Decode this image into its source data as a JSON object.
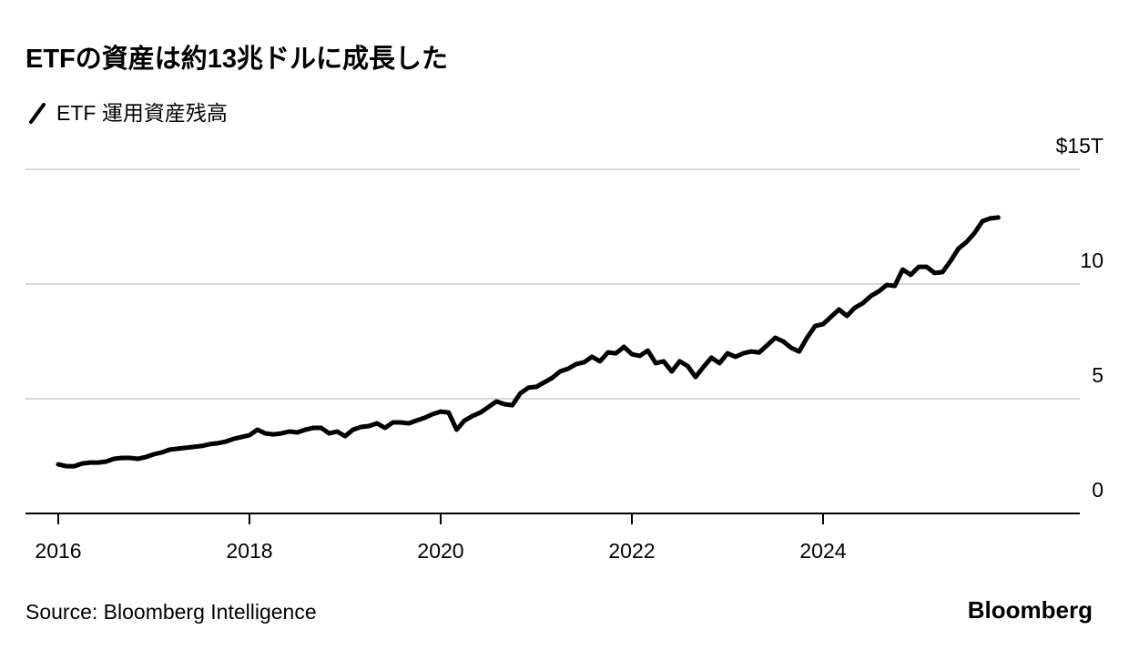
{
  "chart_data": {
    "type": "line",
    "title": "ETFの資産は約13兆ドルに成長した",
    "source": "Source: Bloomberg Intelligence",
    "brand": "Bloomberg",
    "x": [
      2016,
      2016.083,
      2016.167,
      2016.25,
      2016.333,
      2016.417,
      2016.5,
      2016.583,
      2016.667,
      2016.75,
      2016.833,
      2016.917,
      2017,
      2017.083,
      2017.167,
      2017.25,
      2017.333,
      2017.417,
      2017.5,
      2017.583,
      2017.667,
      2017.75,
      2017.833,
      2017.917,
      2018,
      2018.083,
      2018.167,
      2018.25,
      2018.333,
      2018.417,
      2018.5,
      2018.583,
      2018.667,
      2018.75,
      2018.833,
      2018.917,
      2019,
      2019.083,
      2019.167,
      2019.25,
      2019.333,
      2019.417,
      2019.5,
      2019.583,
      2019.667,
      2019.75,
      2019.833,
      2019.917,
      2020,
      2020.083,
      2020.167,
      2020.25,
      2020.333,
      2020.417,
      2020.5,
      2020.583,
      2020.667,
      2020.75,
      2020.833,
      2020.917,
      2021,
      2021.083,
      2021.167,
      2021.25,
      2021.333,
      2021.417,
      2021.5,
      2021.583,
      2021.667,
      2021.75,
      2021.833,
      2021.917,
      2022,
      2022.083,
      2022.167,
      2022.25,
      2022.333,
      2022.417,
      2022.5,
      2022.583,
      2022.667,
      2022.75,
      2022.833,
      2022.917,
      2023,
      2023.083,
      2023.167,
      2023.25,
      2023.333,
      2023.417,
      2023.5,
      2023.583,
      2023.667,
      2023.75,
      2023.833,
      2023.917,
      2024,
      2024.083,
      2024.167,
      2024.25,
      2024.333,
      2024.417,
      2024.5,
      2024.583,
      2024.667,
      2024.75,
      2024.833,
      2024.917,
      2025,
      2025.083,
      2025.167,
      2025.25,
      2025.333,
      2025.417,
      2025.5,
      2025.583,
      2025.667,
      2025.75,
      2025.833
    ],
    "series": [
      {
        "name": "ETF 運用資産残高",
        "color": "#000000",
        "values": [
          2.14,
          2.06,
          2.06,
          2.18,
          2.22,
          2.22,
          2.26,
          2.38,
          2.42,
          2.42,
          2.38,
          2.46,
          2.58,
          2.66,
          2.78,
          2.82,
          2.86,
          2.9,
          2.94,
          3.02,
          3.06,
          3.13,
          3.25,
          3.33,
          3.41,
          3.65,
          3.49,
          3.45,
          3.49,
          3.57,
          3.53,
          3.65,
          3.73,
          3.73,
          3.49,
          3.57,
          3.37,
          3.65,
          3.77,
          3.81,
          3.93,
          3.73,
          3.97,
          3.97,
          3.93,
          4.05,
          4.17,
          4.33,
          4.44,
          4.4,
          3.65,
          4.05,
          4.25,
          4.4,
          4.64,
          4.88,
          4.76,
          4.72,
          5.24,
          5.48,
          5.52,
          5.71,
          5.91,
          6.19,
          6.31,
          6.51,
          6.59,
          6.83,
          6.63,
          7.02,
          6.98,
          7.26,
          6.94,
          6.87,
          7.1,
          6.55,
          6.63,
          6.19,
          6.63,
          6.43,
          5.95,
          6.39,
          6.79,
          6.55,
          6.98,
          6.83,
          6.98,
          7.06,
          7.02,
          7.34,
          7.66,
          7.5,
          7.22,
          7.06,
          7.66,
          8.17,
          8.25,
          8.57,
          8.89,
          8.61,
          8.97,
          9.17,
          9.48,
          9.68,
          9.96,
          9.92,
          10.63,
          10.4,
          10.75,
          10.75,
          10.48,
          10.52,
          11.0,
          11.55,
          11.83,
          12.22,
          12.74,
          12.86,
          12.9
        ]
      }
    ],
    "xlim": [
      2015.657,
      2026.667
    ],
    "xticks": [
      2016,
      2018,
      2020,
      2022,
      2024
    ],
    "ylim": [
      0,
      15
    ],
    "yticks": [
      0,
      5,
      10,
      {
        "value": 15,
        "label": "$15T"
      }
    ],
    "grid": true
  }
}
